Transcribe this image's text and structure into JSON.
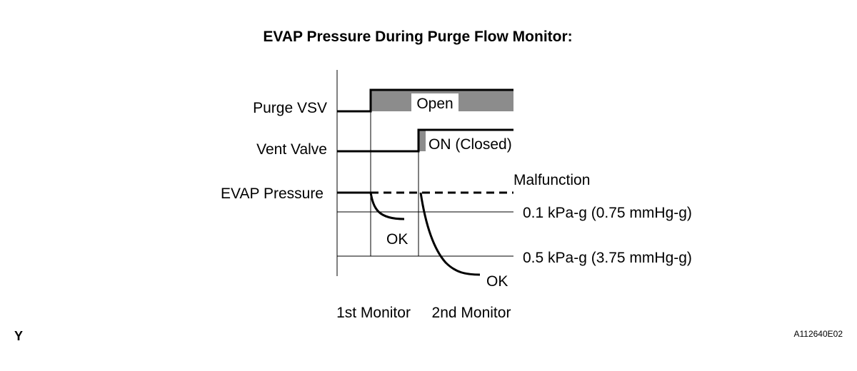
{
  "title": "EVAP Pressure During Purge Flow Monitor:",
  "signals": {
    "purge_vsv": {
      "label": "Purge VSV",
      "state_label": "Open"
    },
    "vent_valve": {
      "label": "Vent Valve",
      "state_label": "ON (Closed)"
    },
    "evap_pressure": {
      "label": "EVAP Pressure"
    }
  },
  "annotations": {
    "malfunction": "Malfunction",
    "threshold_1": "0.1 kPa-g (0.75 mmHg-g)",
    "threshold_2": "0.5 kPa-g (3.75 mmHg-g)",
    "ok_first": "OK",
    "ok_second": "OK"
  },
  "phases": {
    "first": "1st Monitor",
    "second": "2nd Monitor"
  },
  "colors": {
    "fill_gray": "#8c8c8c",
    "line": "#000000"
  },
  "corner_mark": "Y",
  "figure_id": "A112640E02"
}
